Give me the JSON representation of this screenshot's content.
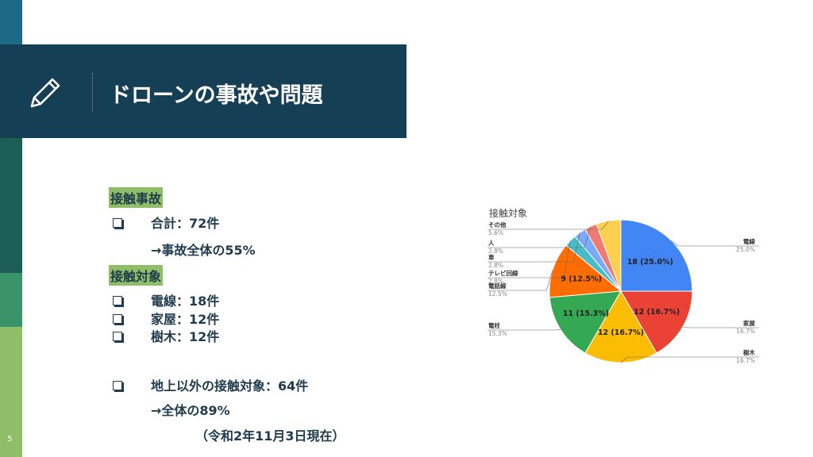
{
  "slide_number": "5",
  "header": {
    "title": "ドローンの事故や問題",
    "icon": "pencil-icon"
  },
  "sections": {
    "accidents": {
      "heading": "接触事故",
      "total": "合計：72件",
      "share": "→事故全体の55%"
    },
    "targets": {
      "heading": "接触対象",
      "items": [
        "電線：18件",
        "家屋：12件",
        "樹木：12件"
      ],
      "non_ground": "地上以外の接触対象：64件",
      "non_ground_share": "→全体の89%",
      "as_of": "（令和2年11月3日現在）"
    }
  },
  "chart_data": {
    "type": "pie",
    "title": "接触対象",
    "slices": [
      {
        "name": "電線",
        "value": 18,
        "label": "18 (25.0%)",
        "pct_label": "25.0%",
        "color": "#4285f4"
      },
      {
        "name": "家屋",
        "value": 12,
        "label": "12 (16.7%)",
        "pct_label": "16.7%",
        "color": "#ea4335"
      },
      {
        "name": "樹木",
        "value": 12,
        "label": "12 (16.7%)",
        "pct_label": "16.7%",
        "color": "#fbbc04"
      },
      {
        "name": "電柱",
        "value": 11,
        "label": "11 (15.3%)",
        "pct_label": "15.3%",
        "color": "#34a853"
      },
      {
        "name": "電話線",
        "value": 9,
        "label": "9 (12.5%)",
        "pct_label": "12.5%",
        "color": "#ff6d01"
      },
      {
        "name": "テレビ回線",
        "value": 2,
        "label": "",
        "pct_label": "2.8%",
        "color": "#46bdc6"
      },
      {
        "name": "車",
        "value": 2,
        "label": "",
        "pct_label": "2.8%",
        "color": "#7baaf7"
      },
      {
        "name": "人",
        "value": 2,
        "label": "",
        "pct_label": "2.8%",
        "color": "#f07b72"
      },
      {
        "name": "その他",
        "value": 4,
        "label": "",
        "pct_label": "5.6%",
        "color": "#fcd04f"
      }
    ]
  }
}
